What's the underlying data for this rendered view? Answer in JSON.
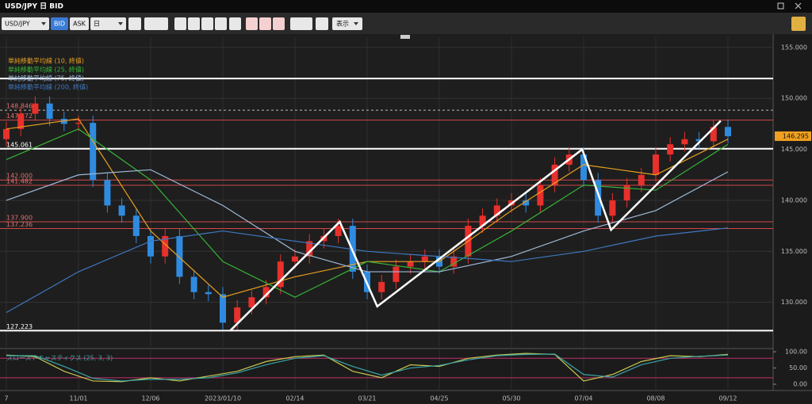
{
  "window": {
    "title": "USD/JPY 日 BID"
  },
  "toolbar": {
    "symbol": "USD/JPY",
    "bid": "BID",
    "ask": "ASK",
    "period": "日",
    "display": "表示"
  },
  "chart_data": [
    {
      "type": "candlestick",
      "categories": [
        "7",
        null,
        null,
        null,
        null,
        "11/01",
        null,
        null,
        null,
        null,
        "12/06",
        null,
        null,
        null,
        null,
        "2023/01/10",
        null,
        null,
        null,
        null,
        "02/14",
        null,
        null,
        null,
        null,
        "03/21",
        null,
        null,
        null,
        null,
        "04/25",
        null,
        null,
        null,
        null,
        "05/30",
        null,
        null,
        null,
        null,
        "07/04",
        null,
        null,
        null,
        null,
        "08/08",
        null,
        null,
        null,
        null,
        "09/12"
      ],
      "ohlc": [
        [
          146.0,
          147.7,
          145.3,
          147.0
        ],
        [
          147.0,
          149.2,
          146.3,
          148.5
        ],
        [
          148.5,
          150.2,
          147.8,
          149.5
        ],
        [
          149.5,
          150.2,
          147.3,
          148.0
        ],
        [
          148.0,
          148.7,
          146.8,
          147.5
        ],
        [
          147.5,
          148.3,
          146.8,
          147.6
        ],
        [
          147.6,
          148.3,
          141.3,
          142.0
        ],
        [
          142.0,
          142.7,
          138.8,
          139.5
        ],
        [
          139.5,
          140.2,
          137.8,
          138.5
        ],
        [
          138.5,
          139.2,
          135.8,
          136.5
        ],
        [
          136.5,
          137.2,
          133.8,
          134.5
        ],
        [
          134.5,
          137.2,
          133.8,
          136.5
        ],
        [
          136.5,
          137.2,
          131.8,
          132.5
        ],
        [
          132.5,
          133.2,
          130.3,
          131.0
        ],
        [
          131.0,
          131.7,
          130.1,
          130.8
        ],
        [
          130.8,
          131.5,
          127.3,
          128.0
        ],
        [
          128.0,
          130.2,
          127.3,
          129.5
        ],
        [
          129.5,
          131.2,
          128.8,
          130.5
        ],
        [
          130.5,
          132.2,
          129.8,
          131.5
        ],
        [
          131.5,
          134.7,
          130.8,
          134.0
        ],
        [
          134.0,
          135.2,
          133.3,
          134.5
        ],
        [
          134.5,
          136.7,
          133.8,
          136.0
        ],
        [
          136.0,
          137.2,
          135.3,
          136.5
        ],
        [
          136.5,
          138.2,
          135.8,
          137.5
        ],
        [
          137.5,
          138.2,
          132.3,
          133.0
        ],
        [
          133.0,
          133.7,
          130.3,
          131.0
        ],
        [
          131.0,
          132.7,
          130.3,
          132.0
        ],
        [
          132.0,
          134.2,
          131.3,
          133.5
        ],
        [
          133.5,
          134.7,
          132.8,
          134.0
        ],
        [
          134.0,
          135.2,
          133.3,
          134.5
        ],
        [
          134.5,
          135.2,
          132.8,
          133.5
        ],
        [
          133.5,
          135.2,
          132.8,
          134.5
        ],
        [
          134.5,
          138.2,
          133.8,
          137.5
        ],
        [
          137.5,
          139.2,
          136.8,
          138.5
        ],
        [
          138.5,
          140.2,
          137.8,
          139.5
        ],
        [
          139.5,
          140.7,
          138.8,
          140.0
        ],
        [
          140.0,
          140.7,
          138.8,
          139.5
        ],
        [
          139.5,
          142.2,
          138.8,
          141.5
        ],
        [
          141.5,
          144.2,
          140.8,
          143.5
        ],
        [
          143.5,
          145.2,
          142.8,
          144.5
        ],
        [
          144.5,
          145.2,
          141.3,
          142.0
        ],
        [
          142.0,
          142.7,
          137.8,
          138.5
        ],
        [
          138.5,
          140.7,
          137.8,
          140.0
        ],
        [
          140.0,
          142.2,
          139.3,
          141.5
        ],
        [
          141.5,
          143.2,
          140.8,
          142.5
        ],
        [
          142.5,
          145.2,
          141.8,
          144.5
        ],
        [
          144.5,
          146.2,
          143.8,
          145.5
        ],
        [
          145.5,
          146.7,
          144.8,
          146.0
        ],
        [
          146.0,
          146.7,
          145.1,
          145.8
        ],
        [
          145.8,
          147.9,
          145.1,
          147.2
        ],
        [
          147.2,
          147.9,
          145.6,
          146.3
        ]
      ],
      "up_color": "#e8302c",
      "down_color": "#2f8be0",
      "ylim": [
        125.7,
        156
      ],
      "yticks": [
        {
          "value": 130,
          "label": "130.000"
        },
        {
          "value": 135,
          "label": "135.000"
        },
        {
          "value": 140,
          "label": "140.000"
        },
        {
          "value": 145,
          "label": "145.000"
        },
        {
          "value": 150,
          "label": "150.000"
        },
        {
          "value": 155,
          "label": "155.000"
        }
      ],
      "grid": true,
      "last_price": 146.295,
      "series": [
        {
          "name": "単純移動平均線 (10, 終値)",
          "color": "#e8a020",
          "x": [
            0,
            5,
            10,
            15,
            20,
            25,
            30,
            35,
            40,
            45,
            50
          ],
          "values": [
            147,
            148,
            137,
            130.5,
            132.5,
            134,
            134,
            139,
            143.5,
            142.5,
            146
          ]
        },
        {
          "name": "単純移動平均線 (25, 終値)",
          "color": "#36b536",
          "x": [
            0,
            5,
            10,
            15,
            20,
            25,
            30,
            35,
            40,
            45,
            50
          ],
          "values": [
            144,
            147,
            142,
            134,
            130.5,
            134,
            133,
            137,
            141.5,
            141,
            145.5
          ]
        },
        {
          "name": "単純移動平均線 (75, 終値)",
          "color": "#9fb8d8",
          "x": [
            0,
            5,
            10,
            15,
            20,
            25,
            30,
            35,
            40,
            45,
            50
          ],
          "values": [
            140,
            142.5,
            143,
            139.5,
            135,
            133,
            133,
            134.5,
            137,
            139,
            142.8
          ]
        },
        {
          "name": "単純移動平均線 (200, 終値)",
          "color": "#3f78c0",
          "x": [
            0,
            5,
            10,
            15,
            20,
            25,
            30,
            35,
            40,
            45,
            50
          ],
          "values": [
            129,
            133,
            136,
            137,
            136,
            135,
            134.5,
            134,
            135,
            136.5,
            137.3
          ]
        }
      ],
      "levels": [
        {
          "value": 151.95,
          "color": "#ffffff",
          "width": 2,
          "show_label": false
        },
        {
          "value": 148.846,
          "color": "#bbbbbb",
          "width": 1,
          "dashed": true
        },
        {
          "value": 147.872,
          "color": "#d04848",
          "width": 1
        },
        {
          "value": 145.061,
          "color": "#ffffff",
          "width": 2
        },
        {
          "value": 142,
          "label": "142.000",
          "color": "#d04848",
          "width": 1
        },
        {
          "value": 141.482,
          "color": "#d04848",
          "width": 1
        },
        {
          "value": 137.9,
          "label": "137.900",
          "color": "#d04848",
          "width": 1
        },
        {
          "value": 137.236,
          "color": "#d04848",
          "width": 1
        },
        {
          "value": 127.223,
          "color": "#ffffff",
          "width": 2
        }
      ],
      "zigzag": {
        "color": "#ffffff",
        "x": [
          15.5,
          23.1,
          25.7,
          39.9,
          41.9,
          49.5
        ],
        "values": [
          127.2,
          137.9,
          129.6,
          145.0,
          137.1,
          147.8
        ]
      }
    },
    {
      "type": "line",
      "title": "スローストキャスティクス (25, 3, 3)",
      "x": [
        0,
        2,
        4,
        6,
        8,
        10,
        12,
        14,
        16,
        18,
        20,
        22,
        24,
        26,
        28,
        30,
        32,
        34,
        36,
        38,
        40,
        42,
        44,
        46,
        48,
        50
      ],
      "series": [
        {
          "color": "#c8c850",
          "values": [
            90,
            85,
            40,
            10,
            8,
            20,
            10,
            25,
            40,
            70,
            85,
            90,
            40,
            20,
            60,
            55,
            80,
            90,
            95,
            92,
            10,
            30,
            70,
            88,
            85,
            92
          ]
        },
        {
          "color": "#3aa6a6",
          "values": [
            88,
            88,
            55,
            18,
            10,
            15,
            15,
            20,
            35,
            60,
            80,
            88,
            55,
            28,
            50,
            58,
            75,
            88,
            92,
            93,
            30,
            22,
            60,
            80,
            86,
            90
          ]
        }
      ],
      "bands": [
        80,
        20
      ],
      "band_color": "#c0306a",
      "ylim": [
        -17,
        110
      ],
      "yticks": [
        {
          "value": 0,
          "label": "0.00"
        },
        {
          "value": 50,
          "label": "50.00"
        },
        {
          "value": 100,
          "label": "100.00"
        }
      ]
    }
  ]
}
